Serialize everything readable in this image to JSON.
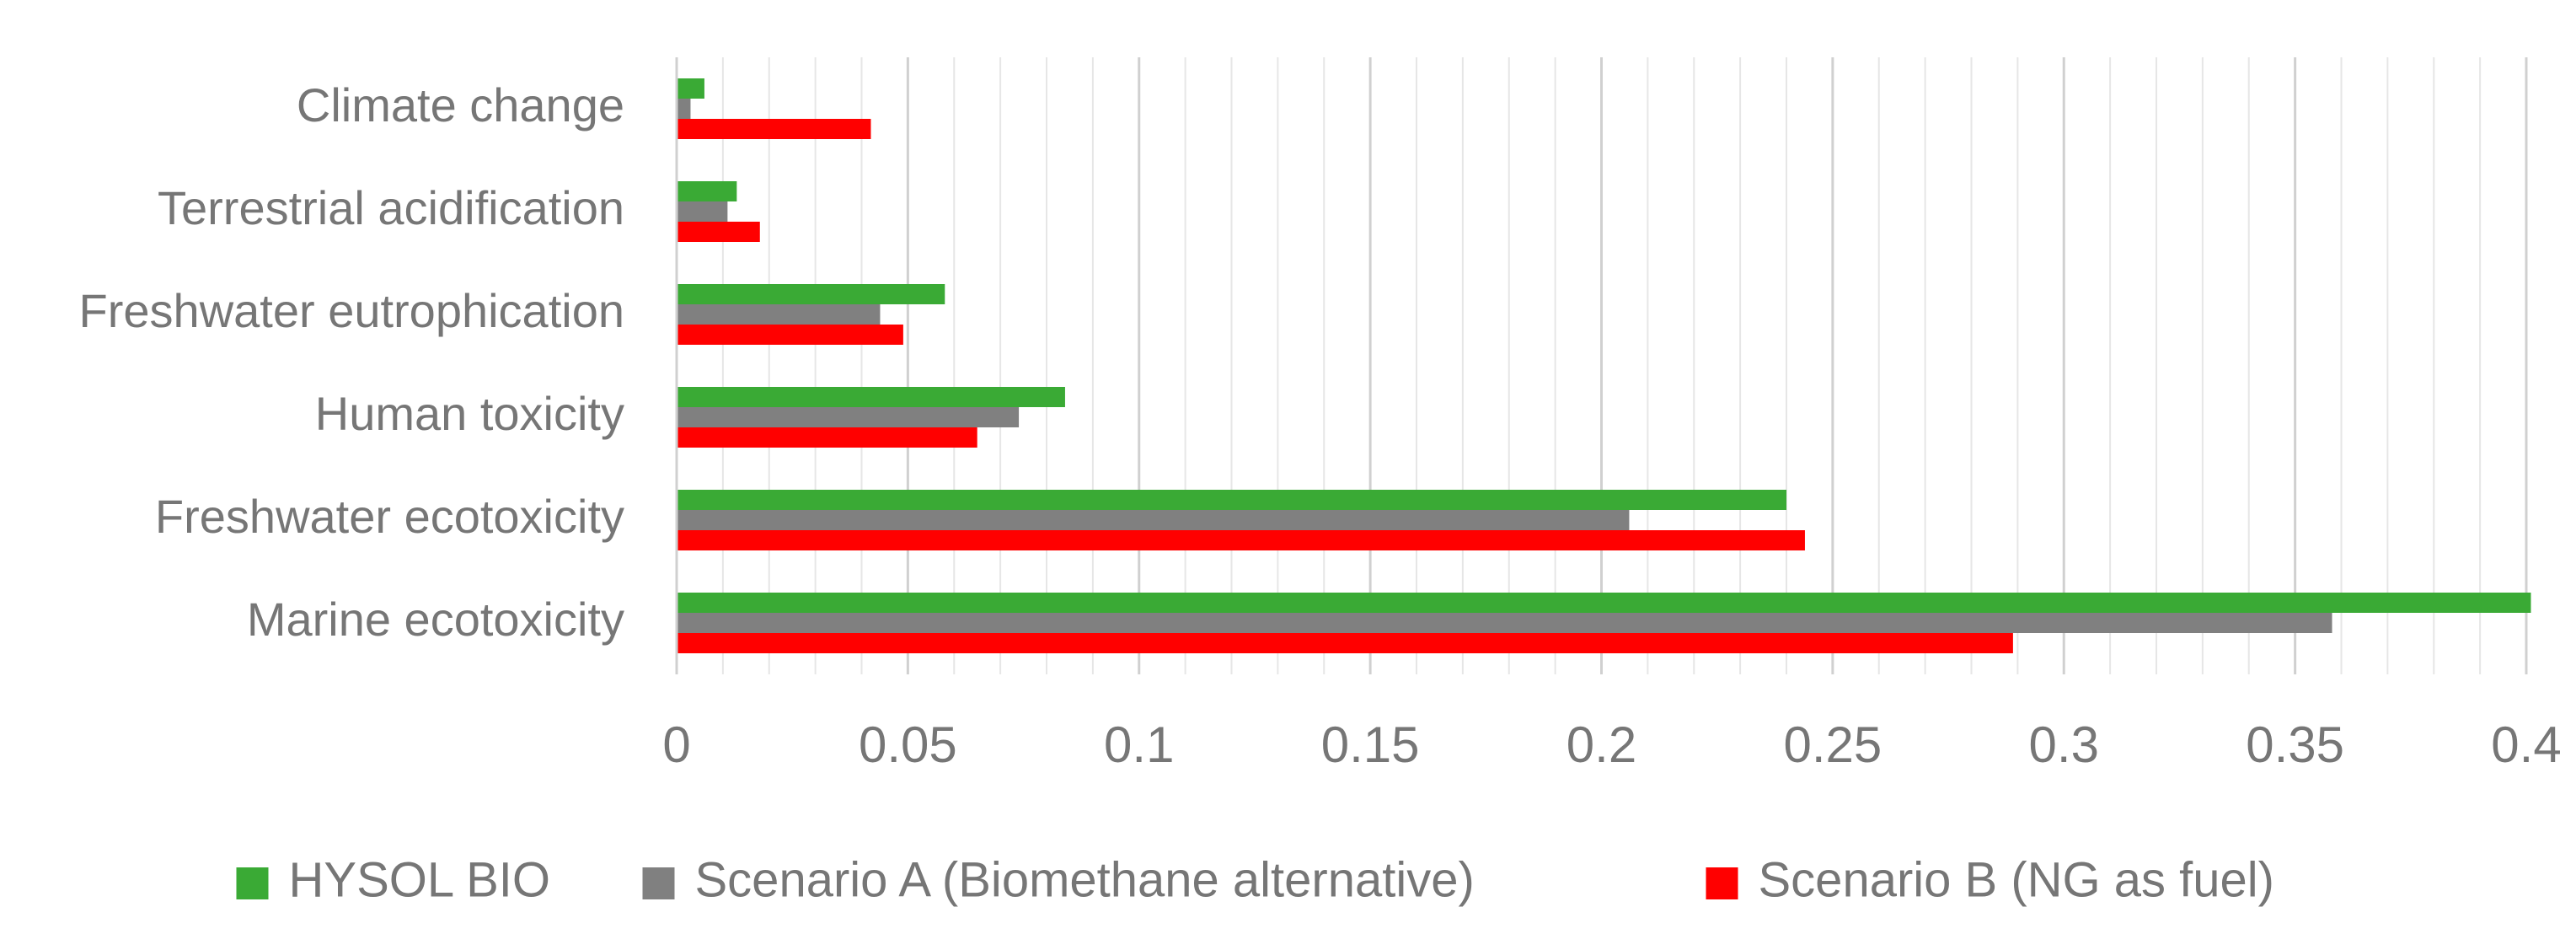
{
  "chart_data": {
    "type": "bar",
    "orientation": "horizontal",
    "categories": [
      "Climate change",
      "Terrestrial acidification",
      "Freshwater eutrophication",
      "Human toxicity",
      "Freshwater ecotoxicity",
      "Marine ecotoxicity"
    ],
    "series": [
      {
        "name": "HYSOL BIO",
        "color": "#3aaa35",
        "values": [
          0.006,
          0.013,
          0.058,
          0.084,
          0.24,
          0.401
        ]
      },
      {
        "name": "Scenario A (Biomethane alternative)",
        "color": "#808080",
        "values": [
          0.003,
          0.011,
          0.044,
          0.074,
          0.206,
          0.358
        ]
      },
      {
        "name": "Scenario B (NG as fuel)",
        "color": "#ff0000",
        "values": [
          0.042,
          0.018,
          0.049,
          0.065,
          0.244,
          0.289
        ]
      }
    ],
    "xlim": [
      0,
      0.4
    ],
    "xticks": [
      "0",
      "0.05",
      "0.1",
      "0.15",
      "0.2",
      "0.25",
      "0.3",
      "0.35",
      "0.4"
    ],
    "title": "",
    "xlabel": "",
    "ylabel": "",
    "grid": "vertical major and minor",
    "legend_position": "bottom"
  }
}
